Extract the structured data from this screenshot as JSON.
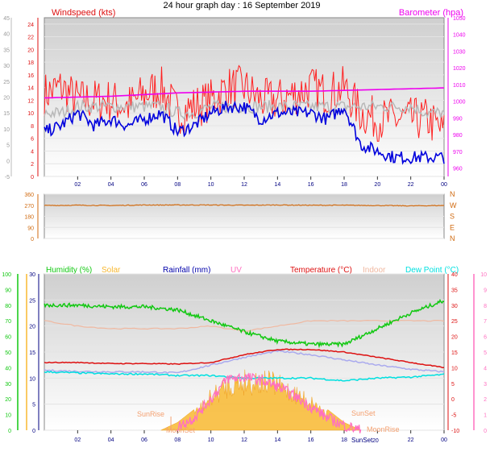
{
  "page_title": "24 hour graph day : 16 September 2019",
  "colors": {
    "wind_gust": "#ff2020",
    "wind_avg": "#0000dd",
    "barometer": "#ee00ee",
    "wind_avg_grey": "#b8b8b8",
    "direction": "#d06a10",
    "humidity": "#11c811",
    "solar": "#f8b830",
    "rainfall": "#0000aa",
    "uv": "#ff70c0",
    "temperature": "#dd1010",
    "indoor": "#f0b8a0",
    "dewpoint": "#00e0e0",
    "lavender": "#aaaaee"
  },
  "chart_data": [
    {
      "type": "line",
      "panel": "wind",
      "title": "Windspeed (kts)",
      "right_title": "Barometer (hpa)",
      "x_ticks": [
        "02",
        "04",
        "06",
        "08",
        "10",
        "12",
        "14",
        "16",
        "18",
        "20",
        "22",
        "00"
      ],
      "y_left_ticks": [
        0,
        2,
        4,
        6,
        8,
        10,
        12,
        14,
        16,
        18,
        20,
        22,
        24
      ],
      "y_right_ticks": [
        960,
        970,
        980,
        990,
        1000,
        1010,
        1020,
        1030,
        1040,
        1050
      ],
      "y_outer_ticks": [
        -5,
        0,
        5,
        10,
        15,
        20,
        25,
        30,
        35,
        40,
        45
      ],
      "ylim_left": [
        0,
        25
      ],
      "ylim_right": [
        955,
        1050
      ],
      "series": [
        {
          "id": "gust",
          "hours": [
            0,
            1,
            2,
            3,
            4,
            5,
            6,
            7,
            8,
            9,
            10,
            11,
            12,
            13,
            14,
            15,
            16,
            17,
            18,
            19,
            20,
            21,
            22,
            23,
            24
          ],
          "values": [
            13,
            14,
            12,
            12,
            12,
            11,
            13,
            14,
            10,
            11,
            12,
            14,
            14,
            12,
            12,
            13,
            14,
            13,
            14,
            10,
            9,
            9,
            9,
            9,
            7
          ]
        },
        {
          "id": "avg",
          "hours": [
            0,
            1,
            2,
            3,
            4,
            5,
            6,
            7,
            8,
            9,
            10,
            11,
            12,
            13,
            14,
            15,
            16,
            17,
            18,
            19,
            20,
            21,
            22,
            23,
            24
          ],
          "values": [
            7,
            8,
            10,
            8,
            9,
            8,
            9,
            10,
            7,
            8,
            10,
            11,
            11,
            9,
            10,
            10,
            10,
            9,
            11,
            5,
            4,
            3,
            3,
            3,
            3
          ]
        },
        {
          "id": "avg_grey",
          "hours": [
            0,
            1,
            2,
            3,
            4,
            5,
            6,
            7,
            8,
            9,
            10,
            11,
            12,
            13,
            14,
            15,
            16,
            17,
            18,
            19,
            20,
            21,
            22,
            23,
            24
          ],
          "values": [
            10,
            10,
            11,
            11,
            11,
            11,
            11,
            11,
            10,
            10,
            11,
            11,
            11,
            11,
            11,
            11,
            11,
            11,
            11,
            11,
            11,
            11,
            11,
            10,
            10
          ]
        },
        {
          "id": "baro",
          "hours": [
            0,
            2,
            4,
            6,
            8,
            10,
            12,
            14,
            16,
            18,
            20,
            22,
            24
          ],
          "values": [
            1002,
            1002.5,
            1003,
            1004,
            1005,
            1005.5,
            1006,
            1006,
            1006,
            1006.5,
            1007,
            1007.5,
            1008
          ]
        }
      ]
    },
    {
      "type": "line",
      "panel": "direction",
      "y_ticks": [
        0,
        90,
        180,
        270,
        360
      ],
      "compass": [
        "N",
        "W",
        "S",
        "E",
        "N"
      ],
      "ylim": [
        0,
        360
      ],
      "series": [
        {
          "id": "dir",
          "hours": [
            0,
            2,
            4,
            6,
            8,
            10,
            12,
            14,
            16,
            18,
            20,
            22,
            24
          ],
          "values": [
            268,
            270,
            268,
            272,
            272,
            272,
            270,
            272,
            270,
            270,
            268,
            265,
            268
          ]
        }
      ]
    },
    {
      "type": "line",
      "panel": "climate",
      "legend": [
        "Humidity (%)",
        "Solar",
        "Rainfall (mm)",
        "UV",
        "Temperature (°C)",
        "Indoor",
        "Dew Point (°C)"
      ],
      "y_mid_ticks": [
        0,
        5,
        10,
        15,
        20,
        25,
        30
      ],
      "y_right_ticks": [
        -10,
        -5,
        0,
        5,
        10,
        15,
        20,
        25,
        30,
        35,
        40
      ],
      "y_humidity_ticks": [
        0,
        10,
        20,
        30,
        40,
        50,
        60,
        70,
        80,
        90,
        100
      ],
      "y_uv_ticks": [
        0,
        1,
        2,
        3,
        4,
        5,
        6,
        7,
        8,
        9,
        10
      ],
      "ylim_mid": [
        0,
        30
      ],
      "ylim_right": [
        -10,
        40
      ],
      "ylim_humidity": [
        0,
        100
      ],
      "annotations": [
        "SunRise",
        "SunSet",
        "MoonRise",
        "MoonSet"
      ],
      "series": [
        {
          "id": "humidity",
          "hours": [
            0,
            2,
            4,
            6,
            8,
            10,
            12,
            14,
            16,
            18,
            20,
            22,
            24
          ],
          "values": [
            80,
            80,
            79,
            79,
            77,
            70,
            63,
            57,
            55,
            55,
            65,
            75,
            83
          ]
        },
        {
          "id": "temperature",
          "hours": [
            0,
            2,
            4,
            6,
            8,
            10,
            12,
            14,
            16,
            18,
            20,
            22,
            24
          ],
          "values": [
            13,
            13,
            12.8,
            12.8,
            12.7,
            13,
            14.5,
            15.5,
            15.5,
            15,
            14,
            13,
            12
          ]
        },
        {
          "id": "indoor",
          "hours": [
            0,
            2,
            4,
            6,
            8,
            10,
            12,
            14,
            16,
            18,
            20,
            22,
            24
          ],
          "values": [
            21,
            20,
            19.5,
            19.5,
            19.5,
            20,
            19,
            20,
            21,
            21,
            21,
            21,
            21
          ]
        },
        {
          "id": "lavender",
          "hours": [
            0,
            2,
            4,
            6,
            8,
            10,
            12,
            14,
            16,
            18,
            20,
            22,
            24
          ],
          "values": [
            11.5,
            11.3,
            11.2,
            11.2,
            11,
            12.5,
            14,
            15.2,
            14.5,
            13.5,
            12.5,
            11.7,
            11.2
          ]
        },
        {
          "id": "dewpoint",
          "hours": [
            0,
            2,
            4,
            6,
            8,
            10,
            12,
            14,
            16,
            18,
            20,
            22,
            24
          ],
          "values": [
            11.2,
            11,
            10.8,
            10.8,
            10.5,
            10.5,
            10,
            10,
            10,
            9.5,
            10,
            10.2,
            10.7
          ]
        },
        {
          "id": "uv",
          "hours": [
            8,
            9,
            10,
            11,
            12,
            13,
            14,
            15,
            16,
            17,
            18,
            19
          ],
          "values": [
            0.2,
            0.8,
            2,
            3.3,
            3.4,
            3.2,
            2.8,
            2.2,
            1.5,
            0.8,
            0.3,
            0
          ]
        },
        {
          "id": "solar",
          "hours": [
            7,
            8,
            9,
            10,
            11,
            12,
            13,
            14,
            15,
            16,
            17,
            18,
            19
          ],
          "values": [
            0,
            1.5,
            4,
            8,
            11,
            12,
            12,
            11,
            9,
            7,
            4,
            1.5,
            0
          ]
        }
      ]
    }
  ]
}
